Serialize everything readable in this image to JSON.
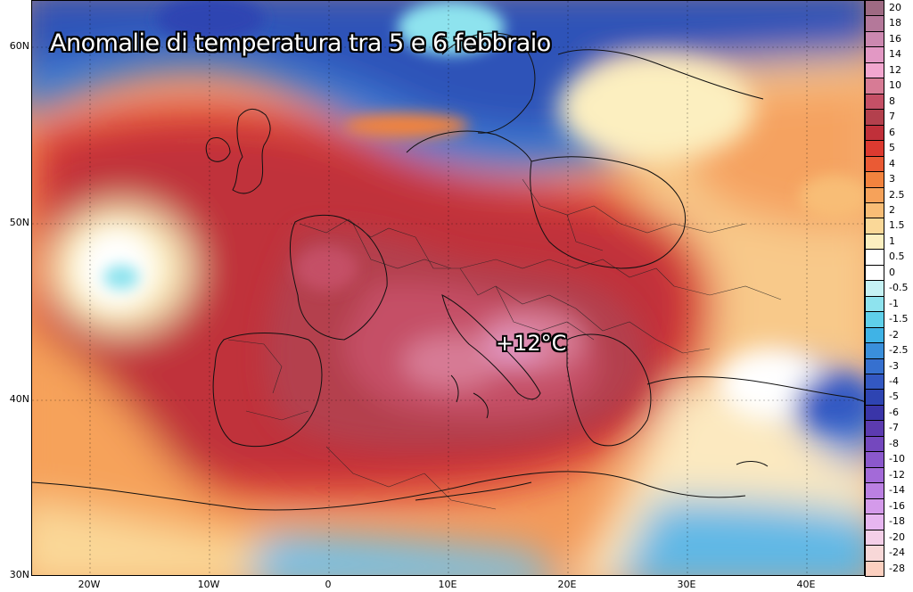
{
  "title": "Anomalie di temperatura tra 5 e 6 febbraio",
  "peak_label": "+12°C",
  "lat_labels": [
    "60N",
    "50N",
    "40N",
    "30N"
  ],
  "lon_labels": [
    "20W",
    "10W",
    "0",
    "10E",
    "20E",
    "30E",
    "40E"
  ],
  "legend": [
    {
      "value": "20",
      "color": "#9e6a83"
    },
    {
      "value": "18",
      "color": "#b4789a"
    },
    {
      "value": "16",
      "color": "#cc88b0"
    },
    {
      "value": "14",
      "color": "#e298c4"
    },
    {
      "value": "12",
      "color": "#f2a6cf"
    },
    {
      "value": "10",
      "color": "#d77b95"
    },
    {
      "value": "8",
      "color": "#c55066"
    },
    {
      "value": "7",
      "color": "#b3404d"
    },
    {
      "value": "6",
      "color": "#c0303a"
    },
    {
      "value": "5",
      "color": "#dc3a30"
    },
    {
      "value": "4",
      "color": "#ea5a34"
    },
    {
      "value": "3",
      "color": "#f2833e"
    },
    {
      "value": "2.5",
      "color": "#f6a25a"
    },
    {
      "value": "2",
      "color": "#f8bd76"
    },
    {
      "value": "1.5",
      "color": "#fad898"
    },
    {
      "value": "1",
      "color": "#fcefc0"
    },
    {
      "value": "0.5",
      "color": "#ffffff"
    },
    {
      "value": "0",
      "color": "#ffffff"
    },
    {
      "value": "-0.5",
      "color": "#c6f2f4"
    },
    {
      "value": "-1",
      "color": "#8ee3ee"
    },
    {
      "value": "-1.5",
      "color": "#5fd0ea"
    },
    {
      "value": "-2",
      "color": "#3fb3e6"
    },
    {
      "value": "-2.5",
      "color": "#3a8fdb"
    },
    {
      "value": "-3",
      "color": "#3670cf"
    },
    {
      "value": "-4",
      "color": "#3358c2"
    },
    {
      "value": "-5",
      "color": "#2e44b2"
    },
    {
      "value": "-6",
      "color": "#3a35a8"
    },
    {
      "value": "-7",
      "color": "#5c3bb0"
    },
    {
      "value": "-8",
      "color": "#7448be"
    },
    {
      "value": "-10",
      "color": "#8b58cc"
    },
    {
      "value": "-12",
      "color": "#a36ad8"
    },
    {
      "value": "-14",
      "color": "#bb80e2"
    },
    {
      "value": "-16",
      "color": "#d49aea"
    },
    {
      "value": "-18",
      "color": "#e7b6f0"
    },
    {
      "value": "-20",
      "color": "#f4cfe8"
    },
    {
      "value": "-24",
      "color": "#f8d8d8"
    },
    {
      "value": "-28",
      "color": "#fcd0c0"
    }
  ]
}
